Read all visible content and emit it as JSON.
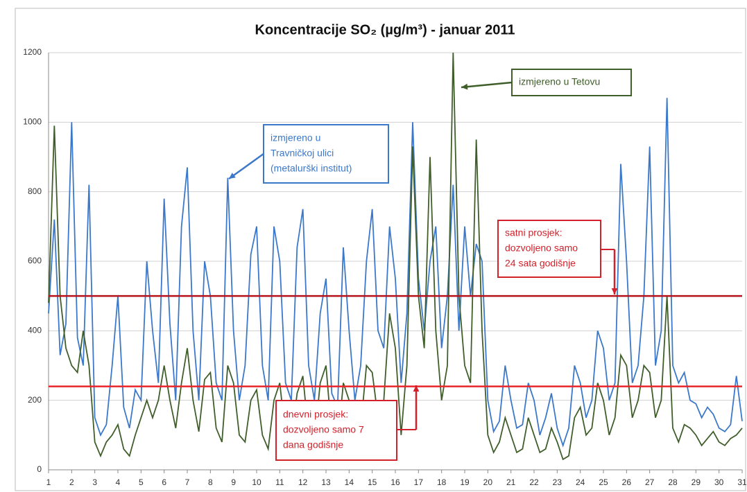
{
  "chart_data": {
    "type": "line",
    "title": "Koncentracije SO₂ (µg/m³) - januar 2011",
    "x": [
      1,
      1.25,
      1.5,
      1.75,
      2,
      2.25,
      2.5,
      2.75,
      3,
      3.25,
      3.5,
      3.75,
      4,
      4.25,
      4.5,
      4.75,
      5,
      5.25,
      5.5,
      5.75,
      6,
      6.25,
      6.5,
      6.75,
      7,
      7.25,
      7.5,
      7.75,
      8,
      8.25,
      8.5,
      8.75,
      9,
      9.25,
      9.5,
      9.75,
      10,
      10.25,
      10.5,
      10.75,
      11,
      11.25,
      11.5,
      11.75,
      12,
      12.25,
      12.5,
      12.75,
      13,
      13.25,
      13.5,
      13.75,
      14,
      14.25,
      14.5,
      14.75,
      15,
      15.25,
      15.5,
      15.75,
      16,
      16.25,
      16.5,
      16.75,
      17,
      17.25,
      17.5,
      17.75,
      18,
      18.25,
      18.5,
      18.75,
      19,
      19.25,
      19.5,
      19.75,
      20,
      20.25,
      20.5,
      20.75,
      21,
      21.25,
      21.5,
      21.75,
      22,
      22.25,
      22.5,
      22.75,
      23,
      23.25,
      23.5,
      23.75,
      24,
      24.25,
      24.5,
      24.75,
      25,
      25.25,
      25.5,
      25.75,
      26,
      26.25,
      26.5,
      26.75,
      27,
      27.25,
      27.5,
      27.75,
      28,
      28.25,
      28.5,
      28.75,
      29,
      29.25,
      29.5,
      29.75,
      30,
      30.25,
      30.5,
      30.75,
      31
    ],
    "series": [
      {
        "name": "izmjereno u Travničkoj ulici (metalurški institut)",
        "color": "#3b78c9",
        "values": [
          450,
          720,
          330,
          420,
          1000,
          380,
          300,
          820,
          150,
          100,
          130,
          300,
          500,
          180,
          120,
          230,
          200,
          600,
          400,
          250,
          780,
          420,
          200,
          700,
          870,
          400,
          200,
          600,
          500,
          250,
          200,
          840,
          400,
          200,
          300,
          620,
          700,
          300,
          200,
          700,
          600,
          250,
          200,
          640,
          750,
          300,
          200,
          450,
          550,
          220,
          180,
          640,
          400,
          200,
          300,
          600,
          750,
          400,
          350,
          700,
          550,
          250,
          450,
          1000,
          550,
          400,
          600,
          700,
          350,
          500,
          820,
          400,
          700,
          500,
          650,
          600,
          200,
          110,
          140,
          300,
          200,
          120,
          130,
          250,
          200,
          100,
          150,
          220,
          120,
          70,
          120,
          300,
          250,
          150,
          200,
          400,
          350,
          200,
          250,
          880,
          600,
          250,
          300,
          500,
          930,
          300,
          400,
          1070,
          300,
          250,
          280,
          200,
          190,
          150,
          180,
          160,
          120,
          110,
          130,
          270,
          140
        ]
      },
      {
        "name": "izmjereno u Tetovu",
        "color": "#3f5e2a",
        "values": [
          480,
          990,
          500,
          350,
          300,
          280,
          400,
          300,
          80,
          40,
          80,
          100,
          130,
          60,
          40,
          100,
          150,
          200,
          150,
          200,
          300,
          200,
          120,
          250,
          350,
          200,
          110,
          260,
          280,
          120,
          80,
          300,
          250,
          100,
          80,
          200,
          230,
          100,
          60,
          200,
          250,
          100,
          80,
          220,
          270,
          100,
          80,
          250,
          300,
          100,
          70,
          250,
          200,
          100,
          120,
          300,
          280,
          150,
          200,
          450,
          350,
          100,
          300,
          930,
          500,
          350,
          900,
          400,
          200,
          300,
          1200,
          500,
          300,
          250,
          950,
          400,
          100,
          50,
          80,
          150,
          100,
          50,
          60,
          150,
          100,
          50,
          60,
          120,
          80,
          30,
          40,
          150,
          180,
          100,
          120,
          250,
          200,
          100,
          150,
          330,
          300,
          150,
          200,
          300,
          280,
          150,
          200,
          500,
          120,
          80,
          130,
          120,
          100,
          70,
          90,
          110,
          80,
          70,
          90,
          100,
          120
        ]
      }
    ],
    "hlines": [
      {
        "value": 500,
        "color": "#b5121b"
      },
      {
        "value": 240,
        "color": "#e8262a"
      }
    ],
    "annotations": [
      {
        "lines": [
          "izmjereno u Tetovu"
        ],
        "color": "#3f5e2a"
      },
      {
        "lines": [
          "izmjereno u",
          "Travničkoj ulici",
          "(metalurški institut)"
        ],
        "color": "#3b78c9"
      },
      {
        "lines": [
          "satni prosjek:",
          "dozvoljeno samo",
          "24 sata godišnje"
        ],
        "color": "#d3202a"
      },
      {
        "lines": [
          "dnevni prosjek:",
          "dozvoljeno samo 7",
          "dana godišnje"
        ],
        "color": "#d3202a"
      }
    ],
    "xlim": [
      1,
      31
    ],
    "xticks": [
      1,
      2,
      3,
      4,
      5,
      6,
      7,
      8,
      9,
      10,
      11,
      12,
      13,
      14,
      15,
      16,
      17,
      18,
      19,
      20,
      21,
      22,
      23,
      24,
      25,
      26,
      27,
      28,
      29,
      30,
      31
    ],
    "ylim": [
      0,
      1200
    ],
    "yticks": [
      0,
      200,
      400,
      600,
      800,
      1000,
      1200
    ],
    "grid": true
  }
}
